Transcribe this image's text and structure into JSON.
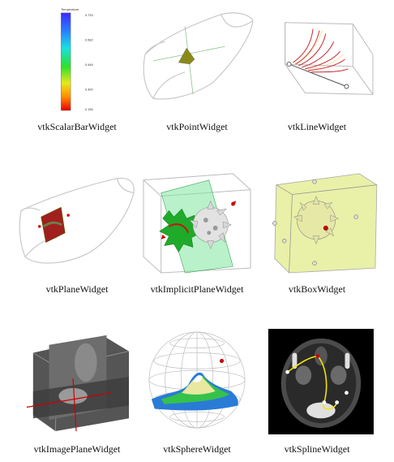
{
  "figure": {
    "captions": [
      "vtkScalarBarWidget",
      "vtkPointWidget",
      "vtkLineWidget",
      "vtkPlaneWidget",
      "vtkImplicitPlaneWidget",
      "vtkBoxWidget",
      "vtkImagePlaneWidget",
      "vtkSphereWidget",
      "vtkSplineWidget"
    ],
    "scalar_bar": {
      "title": "Temperature",
      "ticks": [
        "0.733",
        "0.582",
        "0.446",
        "0.300",
        "0.155"
      ]
    }
  },
  "colors": {
    "outline": "#c8c8c8",
    "tumor_yellow": "#e9f0a8",
    "handle_red": "#cc0000",
    "plane_green": "#7fe69f",
    "ct_background": "#000000"
  }
}
